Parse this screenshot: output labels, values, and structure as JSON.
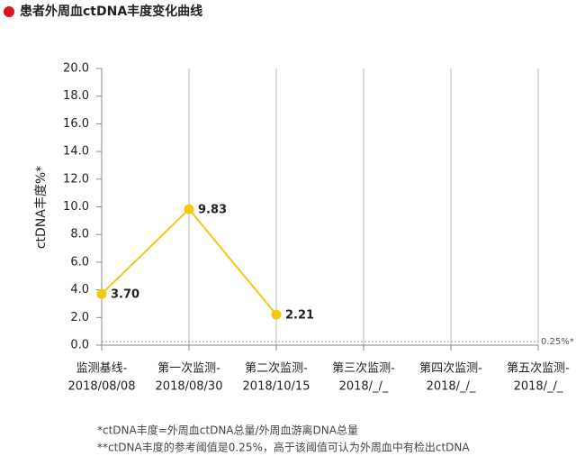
{
  "chart_data": {
    "type": "line",
    "title": "患者外周血ctDNA丰度变化曲线",
    "y_label": "ctDNA丰度%*",
    "categories": [
      [
        "监测基线-",
        "2018/08/08"
      ],
      [
        "第一次监测-",
        "2018/08/30"
      ],
      [
        "第二次监测-",
        "2018/10/15"
      ],
      [
        "第三次监测-",
        "2018/_/_"
      ],
      [
        "第四次监测-",
        "2018/_/_"
      ],
      [
        "第五次监测-",
        "2018/_/_"
      ]
    ],
    "series": [
      {
        "name": "ctDNA丰度",
        "color": "#f2c811",
        "values": [
          3.7,
          9.83,
          2.21,
          null,
          null,
          null
        ],
        "value_labels": [
          "3.70",
          "9.83",
          "2.21",
          null,
          null,
          null
        ]
      }
    ],
    "ylim": [
      0,
      20
    ],
    "yticks": [
      {
        "value": 0,
        "label": "0.0"
      },
      {
        "value": 2,
        "label": "2.0"
      },
      {
        "value": 4,
        "label": "4.0"
      },
      {
        "value": 6,
        "label": "6.0"
      },
      {
        "value": 8,
        "label": "8.0"
      },
      {
        "value": 10,
        "label": "10.0"
      },
      {
        "value": 12,
        "label": "12.0"
      },
      {
        "value": 14,
        "label": "14.0"
      },
      {
        "value": 16,
        "label": "16.0"
      },
      {
        "value": 18,
        "label": "18.0"
      },
      {
        "value": 20,
        "label": "20.0"
      }
    ],
    "threshold": {
      "value": 0.25,
      "label": "0.25%*"
    },
    "notes": [
      "*ctDNA丰度=外周血ctDNA总量/外周血游离DNA总量",
      "**ctDNA丰度的参考阈值是0.25%，高于该阈值可认为外周血中有检出ctDNA"
    ],
    "grid": true
  }
}
